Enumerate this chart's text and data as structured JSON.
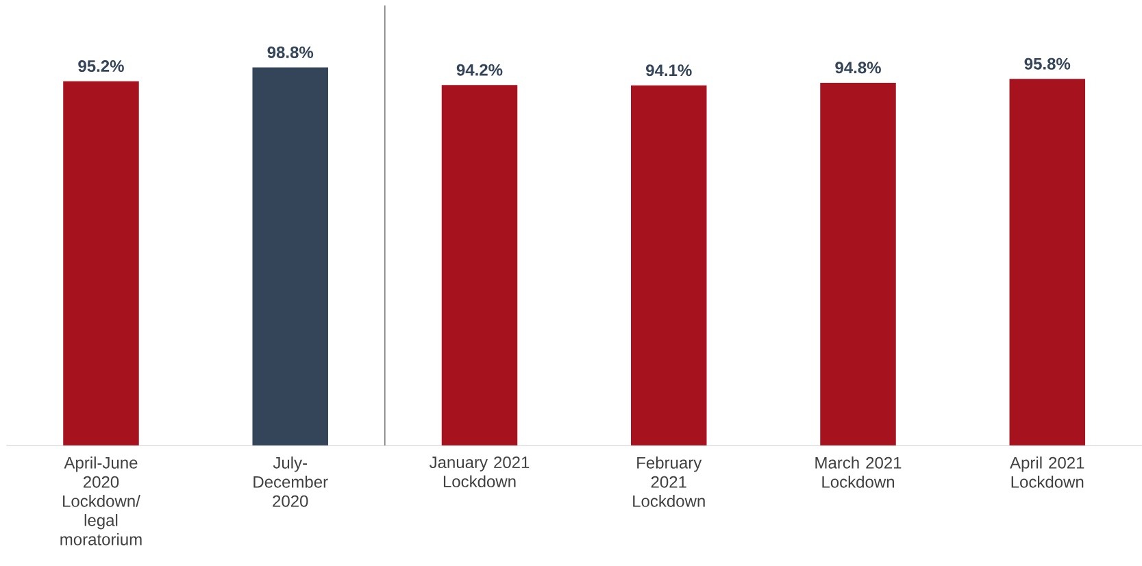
{
  "chart_data": {
    "type": "bar",
    "categories": [
      "April-June 2020 Lockdown/ legal moratorium",
      "July-December 2020",
      "January 2021 Lockdown",
      "February 2021 Lockdown",
      "March 2021 Lockdown",
      "April 2021 Lockdown"
    ],
    "values": [
      95.2,
      98.8,
      94.2,
      94.1,
      94.8,
      95.8
    ],
    "colors": [
      "#a6121d",
      "#34455a",
      "#a6121d",
      "#a6121d",
      "#a6121d",
      "#a6121d"
    ],
    "value_labels": [
      "95.2%",
      "98.8%",
      "94.2%",
      "94.1%",
      "94.8%",
      "95.8%"
    ],
    "ylim": [
      0,
      115
    ]
  }
}
